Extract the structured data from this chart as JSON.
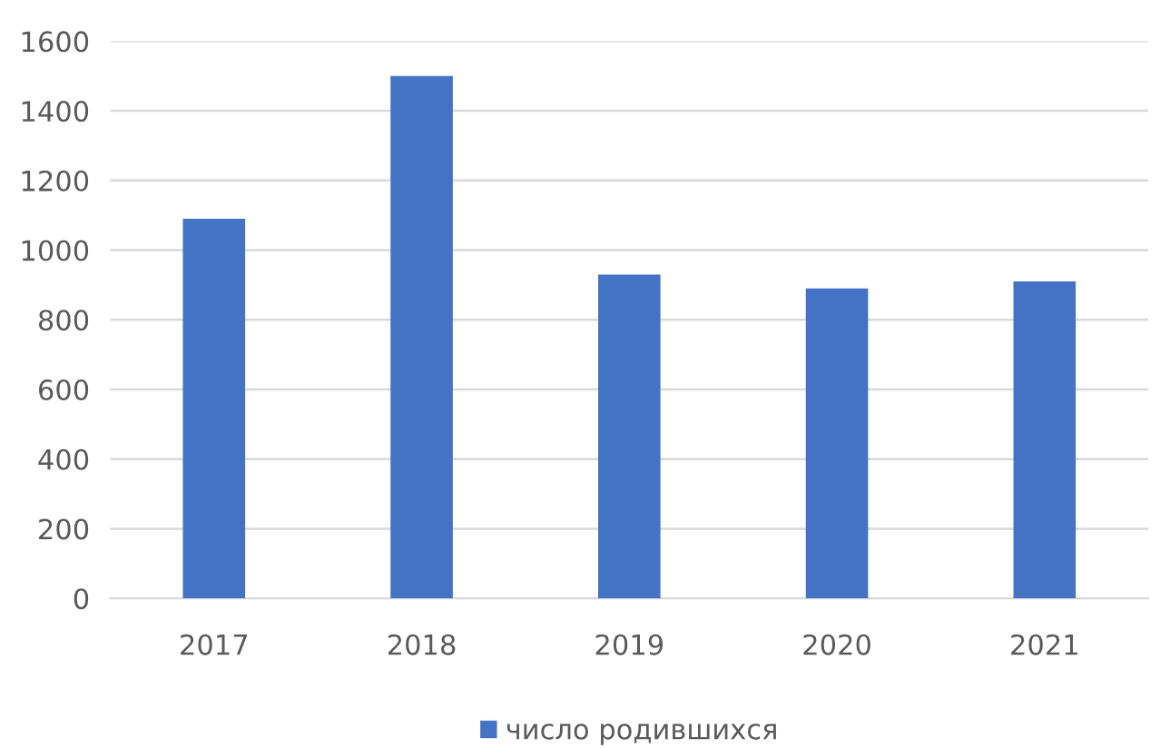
{
  "chart_data": {
    "type": "bar",
    "categories": [
      "2017",
      "2018",
      "2019",
      "2020",
      "2021"
    ],
    "series": [
      {
        "name": "число родившихся",
        "color": "#4472c4",
        "values": [
          1090,
          1500,
          930,
          890,
          910
        ]
      }
    ],
    "ylim": [
      0,
      1600
    ],
    "yticks": [
      0,
      200,
      400,
      600,
      800,
      1000,
      1200,
      1400,
      1600
    ],
    "grid": "y",
    "legend": "bottom"
  }
}
